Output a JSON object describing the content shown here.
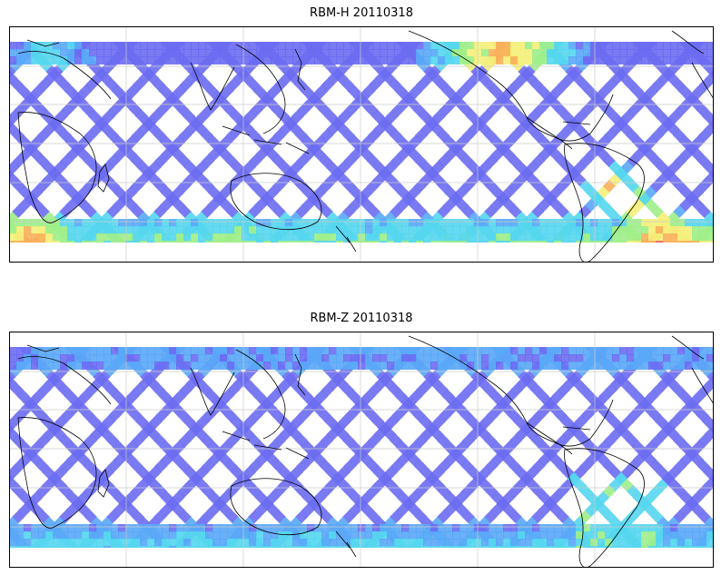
{
  "figure": {
    "panels": [
      {
        "title": "RBM-H 20110318",
        "variant": "h"
      },
      {
        "title": "RBM-Z 20110318",
        "variant": "z"
      }
    ]
  },
  "colors": {
    "track_base": "#6b6cf2",
    "track_mid": "#5aa7f7",
    "cyan": "#55d6ee",
    "green": "#9eee8a",
    "yellow": "#f4f07a",
    "orange": "#f8b05a",
    "red": "#f06060",
    "coast": "#000000",
    "grid": "#cccccc"
  }
}
